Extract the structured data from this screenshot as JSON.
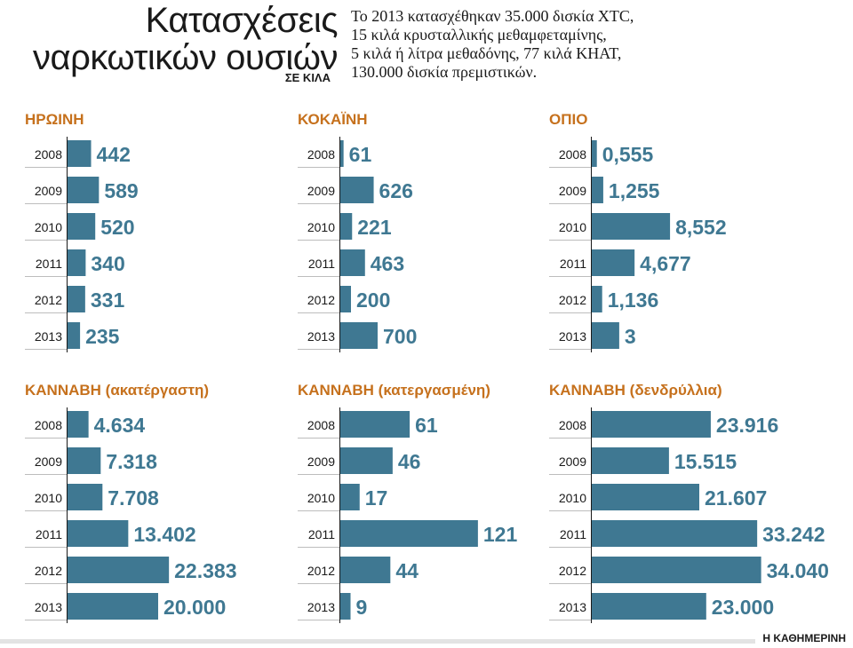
{
  "title_line1": "Κατασχέσεις",
  "title_line2": "ναρκωτικών ουσιών",
  "unit": "ΣΕ ΚΙΛΑ",
  "subtitle_lines": [
    "Το 2013 κατασχέθηκαν 35.000 δισκία ΧΤC,",
    "15 κιλά κρυσταλλικής μεθαμφεταμίνης,",
    "5 κιλά ή λίτρα μεθαδόνης, 77 κιλά ΚΗΑΤ,",
    "130.000 δισκία πρεμιστικών."
  ],
  "source": "Η ΚΑΘΗΜΕΡΙΝΗ",
  "colors": {
    "bar": "#3f7892",
    "panel_title": "#c6711d"
  },
  "chart_data": [
    {
      "type": "bar",
      "title": "ΗΡΩΙΝΗ",
      "categories": [
        "2008",
        "2009",
        "2010",
        "2011",
        "2012",
        "2013"
      ],
      "values": [
        442,
        589,
        520,
        340,
        331,
        235
      ],
      "value_labels": [
        "442",
        "589",
        "520",
        "340",
        "331",
        "235"
      ]
    },
    {
      "type": "bar",
      "title": "ΚΟΚΑΪΝΗ",
      "categories": [
        "2008",
        "2009",
        "2010",
        "2011",
        "2012",
        "2013"
      ],
      "values": [
        61,
        626,
        221,
        463,
        200,
        700
      ],
      "value_labels": [
        "61",
        "626",
        "221",
        "463",
        "200",
        "700"
      ]
    },
    {
      "type": "bar",
      "title": "ΟΠΙΟ",
      "categories": [
        "2008",
        "2009",
        "2010",
        "2011",
        "2012",
        "2013"
      ],
      "values": [
        0.555,
        1.255,
        8.552,
        4.677,
        1.136,
        3
      ],
      "value_labels": [
        "0,555",
        "1,255",
        "8,552",
        "4,677",
        "1,136",
        "3"
      ]
    },
    {
      "type": "bar",
      "title": "ΚΑΝΝΑΒΗ (ακατέργαστη)",
      "categories": [
        "2008",
        "2009",
        "2010",
        "2011",
        "2012",
        "2013"
      ],
      "values": [
        4634,
        7318,
        7708,
        13402,
        22383,
        20000
      ],
      "value_labels": [
        "4.634",
        "7.318",
        "7.708",
        "13.402",
        "22.383",
        "20.000"
      ]
    },
    {
      "type": "bar",
      "title": "ΚΑΝΝΑΒΗ (κατεργασμένη)",
      "categories": [
        "2008",
        "2009",
        "2010",
        "2011",
        "2012",
        "2013"
      ],
      "values": [
        61,
        46,
        17,
        121,
        44,
        9
      ],
      "value_labels": [
        "61",
        "46",
        "17",
        "121",
        "44",
        "9"
      ]
    },
    {
      "type": "bar",
      "title": "ΚΑΝΝΑΒΗ (δενδρύλλια)",
      "categories": [
        "2008",
        "2009",
        "2010",
        "2011",
        "2012",
        "2013"
      ],
      "values": [
        23916,
        15515,
        21607,
        33242,
        34040,
        23000
      ],
      "value_labels": [
        "23.916",
        "15.515",
        "21.607",
        "33.242",
        "34.040",
        "23.000"
      ]
    }
  ]
}
